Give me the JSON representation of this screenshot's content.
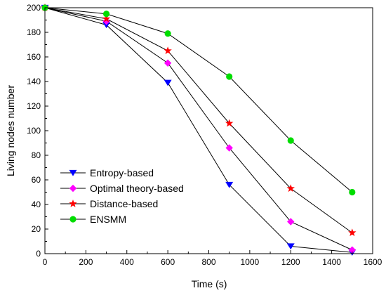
{
  "chart_data": {
    "type": "line",
    "title": "",
    "xlabel": "Time (s)",
    "ylabel": "Living nodes number",
    "xlim": [
      0,
      1600
    ],
    "ylim": [
      0,
      200
    ],
    "xticks": [
      0,
      200,
      400,
      600,
      800,
      1000,
      1200,
      1400,
      1600
    ],
    "yticks": [
      0,
      20,
      40,
      60,
      80,
      100,
      120,
      140,
      160,
      180,
      200
    ],
    "grid": false,
    "legend_position": "bottom-left",
    "series": [
      {
        "name": "Entropy-based",
        "color": "#0000ff",
        "marker": "triangle-down-icon",
        "x": [
          0,
          300,
          600,
          900,
          1200,
          1500
        ],
        "y": [
          200,
          186,
          139,
          56,
          6,
          1
        ]
      },
      {
        "name": "Optimal theory-based",
        "color": "#ff00ff",
        "marker": "diamond-icon",
        "x": [
          0,
          300,
          600,
          900,
          1200,
          1500
        ],
        "y": [
          200,
          189,
          155,
          86,
          26,
          3
        ]
      },
      {
        "name": "Distance-based",
        "color": "#ff0000",
        "marker": "star-icon",
        "x": [
          0,
          300,
          600,
          900,
          1200,
          1500
        ],
        "y": [
          200,
          191,
          165,
          106,
          53,
          17
        ]
      },
      {
        "name": "ENSMM",
        "color": "#00dd00",
        "marker": "circle-icon",
        "x": [
          0,
          300,
          600,
          900,
          1200,
          1500
        ],
        "y": [
          200,
          195,
          179,
          144,
          92,
          50
        ]
      }
    ]
  }
}
